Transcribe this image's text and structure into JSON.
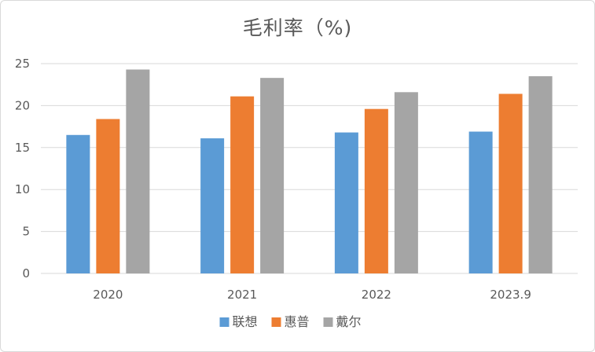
{
  "chart_data": {
    "type": "bar",
    "title": "毛利率（%)",
    "categories": [
      "2020",
      "2021",
      "2022",
      "2023.9"
    ],
    "series": [
      {
        "name": "联想",
        "color": "#5b9bd5",
        "values": [
          16.5,
          16.1,
          16.8,
          16.9
        ]
      },
      {
        "name": "惠普",
        "color": "#ed7d31",
        "values": [
          18.4,
          21.1,
          19.6,
          21.4
        ]
      },
      {
        "name": "戴尔",
        "color": "#a5a5a5",
        "values": [
          24.3,
          23.3,
          21.6,
          23.5
        ]
      }
    ],
    "ylim": [
      0,
      25
    ],
    "yticks": [
      "0",
      "5",
      "10",
      "15",
      "20",
      "25"
    ],
    "grid": true,
    "legend_position": "bottom"
  }
}
